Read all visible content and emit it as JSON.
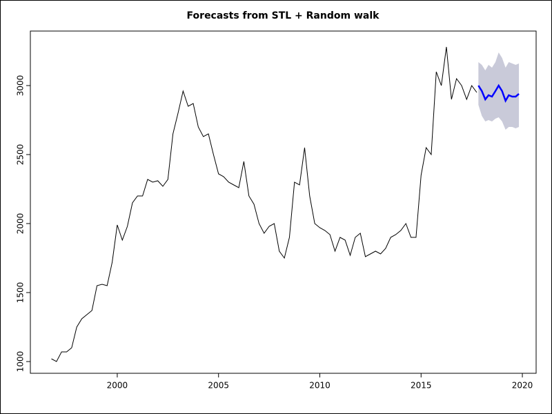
{
  "chart_data": {
    "type": "line",
    "title": "Forecasts from STL +  Random walk",
    "x": [
      1996.75,
      1997.0,
      1997.25,
      1997.5,
      1997.75,
      1998.0,
      1998.25,
      1998.5,
      1998.75,
      1999.0,
      1999.25,
      1999.5,
      1999.75,
      2000.0,
      2000.25,
      2000.5,
      2000.75,
      2001.0,
      2001.25,
      2001.5,
      2001.75,
      2002.0,
      2002.25,
      2002.5,
      2002.75,
      2003.0,
      2003.25,
      2003.5,
      2003.75,
      2004.0,
      2004.25,
      2004.5,
      2004.75,
      2005.0,
      2005.25,
      2005.5,
      2005.75,
      2006.0,
      2006.25,
      2006.5,
      2006.75,
      2007.0,
      2007.25,
      2007.5,
      2007.75,
      2008.0,
      2008.25,
      2008.5,
      2008.75,
      2009.0,
      2009.25,
      2009.5,
      2009.75,
      2010.0,
      2010.25,
      2010.5,
      2010.75,
      2011.0,
      2011.25,
      2011.5,
      2011.75,
      2012.0,
      2012.25,
      2012.5,
      2012.75,
      2013.0,
      2013.25,
      2013.5,
      2013.75,
      2014.0,
      2014.25,
      2014.5,
      2014.75,
      2015.0,
      2015.25,
      2015.5,
      2015.75,
      2016.0,
      2016.25,
      2016.5,
      2016.75,
      2017.0,
      2017.25,
      2017.5,
      2017.75
    ],
    "values": [
      1020,
      1000,
      1070,
      1070,
      1100,
      1250,
      1310,
      1340,
      1370,
      1550,
      1560,
      1550,
      1720,
      1990,
      1880,
      1980,
      2150,
      2200,
      2200,
      2320,
      2300,
      2310,
      2270,
      2320,
      2650,
      2800,
      2960,
      2850,
      2870,
      2700,
      2630,
      2650,
      2500,
      2360,
      2340,
      2300,
      2280,
      2260,
      2450,
      2200,
      2140,
      2000,
      1930,
      1980,
      2000,
      1800,
      1750,
      1900,
      2300,
      2280,
      2550,
      2200,
      2000,
      1970,
      1950,
      1920,
      1800,
      1900,
      1880,
      1770,
      1900,
      1930,
      1760,
      1780,
      1800,
      1780,
      1820,
      1900,
      1920,
      1950,
      2000,
      1900,
      1900,
      2350,
      2550,
      2500,
      3100,
      3000,
      3280,
      2900,
      3050,
      3000,
      2900,
      3000,
      2950
    ],
    "color": "#000000",
    "forecast": {
      "x": [
        2017.83,
        2018.0,
        2018.17,
        2018.33,
        2018.5,
        2018.67,
        2018.83,
        2019.0,
        2019.17,
        2019.33,
        2019.5,
        2019.67,
        2019.83
      ],
      "values": [
        3000,
        2960,
        2900,
        2930,
        2920,
        2960,
        3000,
        2960,
        2890,
        2930,
        2920,
        2920,
        2940
      ],
      "lower": [
        2860,
        2780,
        2740,
        2750,
        2740,
        2760,
        2770,
        2740,
        2680,
        2700,
        2700,
        2690,
        2700
      ],
      "upper": [
        3170,
        3150,
        3110,
        3150,
        3130,
        3170,
        3240,
        3200,
        3130,
        3170,
        3160,
        3150,
        3160
      ],
      "color": "#0000ff",
      "band_color": "#c9cad9"
    },
    "xlim": [
      1995.71,
      2020.68
    ],
    "ylim": [
      915,
      3395
    ],
    "xticks": [
      2000,
      2005,
      2010,
      2015,
      2020
    ],
    "yticks": [
      1000,
      1500,
      2000,
      2500,
      3000
    ]
  }
}
